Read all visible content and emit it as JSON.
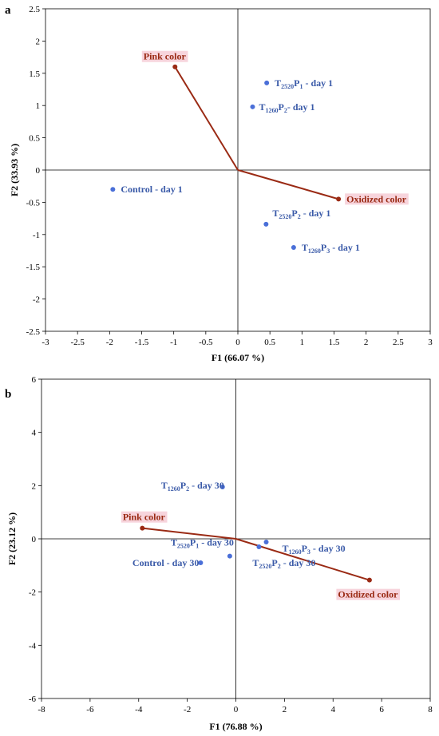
{
  "chart_data": [
    {
      "panel": "a",
      "type": "scatter",
      "xlabel": "F1 (66.07 %)",
      "ylabel": "F2 (33.93 %)",
      "xlim": [
        -3,
        3
      ],
      "ylim": [
        -2.5,
        2.5
      ],
      "xticks": [
        -3,
        -2.5,
        -2,
        -1.5,
        -1,
        -0.5,
        0,
        0.5,
        1,
        1.5,
        2,
        2.5,
        3
      ],
      "yticks": [
        -2.5,
        -2,
        -1.5,
        -1,
        -0.5,
        0,
        0.5,
        1,
        1.5,
        2,
        2.5
      ],
      "observations": [
        {
          "label": [
            "T",
            "2520",
            "P",
            "1",
            " - day 1"
          ],
          "x": 0.45,
          "y": 1.35
        },
        {
          "label": [
            "T",
            "1260",
            "P",
            "2",
            "- day 1"
          ],
          "x": 0.23,
          "y": 0.98
        },
        {
          "label": [
            "Control - day 1"
          ],
          "x": -1.95,
          "y": -0.3
        },
        {
          "label": [
            "T",
            "2520",
            "P",
            "2",
            " - day 1"
          ],
          "x": 0.44,
          "y": -0.84
        },
        {
          "label": [
            "T",
            "1260",
            "P",
            "3",
            " - day 1"
          ],
          "x": 0.87,
          "y": -1.2
        }
      ],
      "variables": [
        {
          "label": "Pink color",
          "x": -0.98,
          "y": 1.6
        },
        {
          "label": "Oxidized color",
          "x": 1.57,
          "y": -0.45
        }
      ],
      "grid": false,
      "colors": {
        "observations": "#4a6fd8",
        "observation_text": "#3a5aa8",
        "variables": "#9a2a14",
        "variable_label_bg": "#f7d4dc"
      }
    },
    {
      "panel": "b",
      "type": "scatter",
      "xlabel": "F1 (76.88 %)",
      "ylabel": "F2 (23.12 %)",
      "xlim": [
        -8,
        8
      ],
      "ylim": [
        -6,
        6
      ],
      "xticks": [
        -8,
        -6,
        -4,
        -2,
        0,
        2,
        4,
        6,
        8
      ],
      "yticks": [
        -6,
        -4,
        -2,
        0,
        2,
        4,
        6
      ],
      "observations": [
        {
          "label": [
            "T",
            "1260",
            "P",
            "2",
            " - day 30"
          ],
          "x": -0.55,
          "y": 1.95
        },
        {
          "label": [
            "T",
            "2520",
            "P",
            "1",
            " - day 30"
          ],
          "x": -0.25,
          "y": -0.65
        },
        {
          "label": [
            "Control - day 30"
          ],
          "x": -1.45,
          "y": -0.9
        },
        {
          "label": [
            "T",
            "1260",
            "P",
            "3",
            " - day 30"
          ],
          "x": 1.25,
          "y": -0.12
        },
        {
          "label": [
            "T",
            "2520",
            "P",
            "2",
            " - day 30"
          ],
          "x": 0.95,
          "y": -0.3
        }
      ],
      "variables": [
        {
          "label": "Pink color",
          "x": -3.85,
          "y": 0.4
        },
        {
          "label": "Oxidized color",
          "x": 5.5,
          "y": -1.55
        }
      ],
      "grid": false,
      "colors": {
        "observations": "#4a6fd8",
        "observation_text": "#3a5aa8",
        "variables": "#9a2a14",
        "variable_label_bg": "#f7d4dc"
      }
    }
  ]
}
